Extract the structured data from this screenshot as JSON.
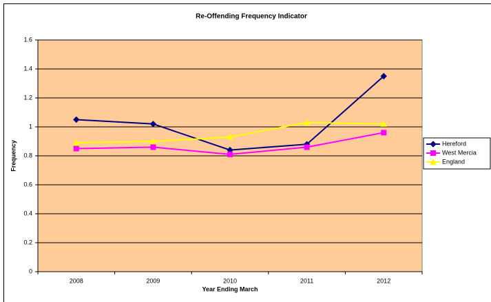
{
  "chart_data": {
    "type": "line",
    "title": "Re-Offending Frequency Indicator",
    "x_label": "Year Ending March",
    "y_label": "Frequency",
    "categories": [
      "2008",
      "2009",
      "2010",
      "2011",
      "2012"
    ],
    "series": [
      {
        "name": "Hereford",
        "color": "#000080",
        "marker": "diamond",
        "values": [
          1.05,
          1.02,
          0.84,
          0.88,
          1.35
        ]
      },
      {
        "name": "West Mercia",
        "color": "#ff00ff",
        "marker": "square",
        "values": [
          0.85,
          0.86,
          0.81,
          0.86,
          0.96
        ]
      },
      {
        "name": "England",
        "color": "#ffff00",
        "marker": "triangle",
        "values": [
          0.89,
          0.9,
          0.93,
          1.03,
          1.02
        ]
      }
    ],
    "ylim": [
      0,
      1.6
    ],
    "yticks": [
      0,
      0.2,
      0.4,
      0.6,
      0.8,
      1,
      1.2,
      1.4,
      1.6
    ],
    "grid": true,
    "legend": "right",
    "plot_background": "#ffcc99"
  }
}
